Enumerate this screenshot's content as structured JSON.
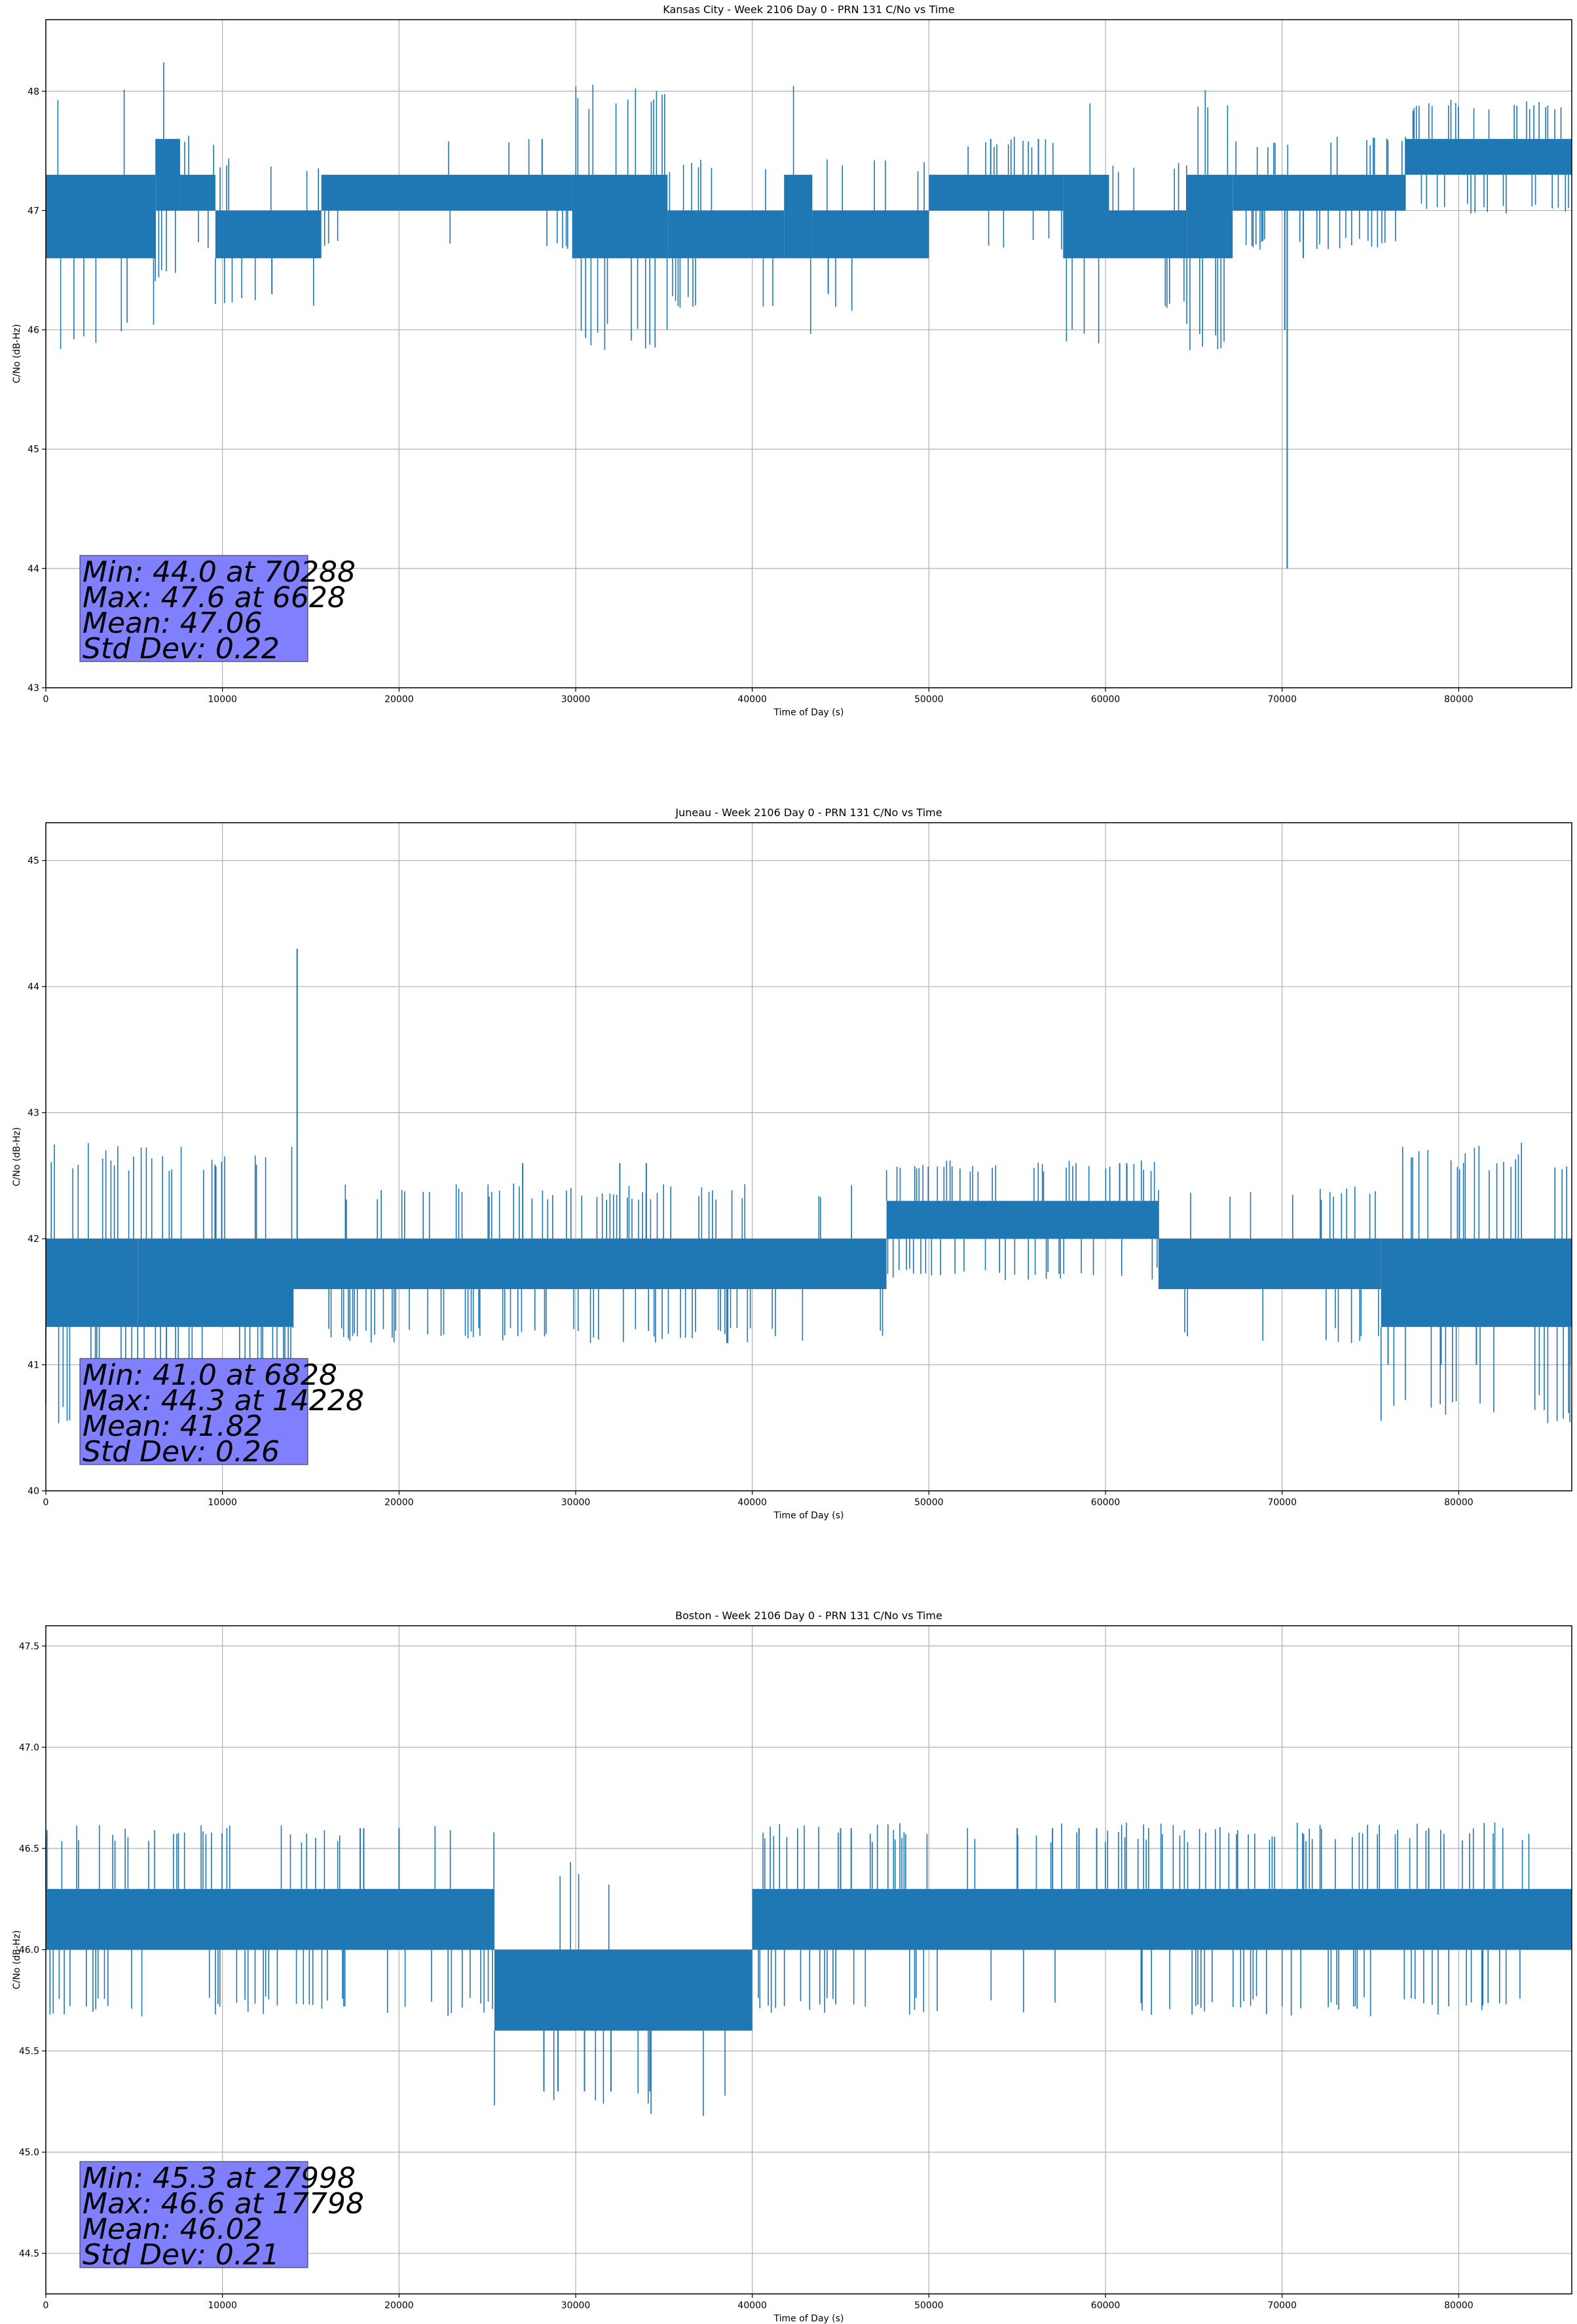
{
  "colors": {
    "series": "#1f77b4",
    "grid": "#b0b0b0",
    "stats_box": "#8080ff",
    "axes": "#000000",
    "background": "#ffffff"
  },
  "chart_data": [
    {
      "type": "line",
      "title": "Kansas City - Week 2106 Day 0 - PRN 131 C/No vs Time",
      "xlabel": "Time of Day (s)",
      "ylabel": "C/No (dB-Hz)",
      "xlim": [
        0,
        86400
      ],
      "ylim": [
        43,
        48.6
      ],
      "xticks": [
        0,
        10000,
        20000,
        30000,
        40000,
        50000,
        60000,
        70000,
        80000
      ],
      "xtick_labels": [
        "0",
        "10000",
        "20000",
        "30000",
        "40000",
        "50000",
        "60000",
        "70000",
        "80000"
      ],
      "yticks": [
        43,
        44,
        45,
        46,
        47,
        48
      ],
      "ytick_labels": [
        "43",
        "44",
        "45",
        "46",
        "47",
        "48"
      ],
      "grid": true,
      "legend": "none",
      "stats_lines": [
        "Min: 44.0 at 70288",
        "Max: 47.6 at 6628",
        "Mean: 47.06",
        "Std Dev: 0.22"
      ],
      "series": [
        {
          "values_note": "Noisy C/No trace; quantized levels 46.6 / 47.0 / 47.3 / 47.6 dB-Hz",
          "segments": [
            {
              "x": [
                0,
                6200
              ],
              "low": 46.6,
              "high": 47.3
            },
            {
              "x": [
                6200,
                7600
              ],
              "low": 47.0,
              "high": 47.6
            },
            {
              "x": [
                7600,
                9600
              ],
              "low": 47.0,
              "high": 47.3
            },
            {
              "x": [
                9600,
                15600
              ],
              "low": 46.6,
              "high": 47.0
            },
            {
              "x": [
                15600,
                29800
              ],
              "low": 47.0,
              "high": 47.3
            },
            {
              "x": [
                29800,
                35200
              ],
              "low": 46.6,
              "high": 47.3
            },
            {
              "x": [
                35200,
                41800
              ],
              "low": 46.6,
              "high": 47.0
            },
            {
              "x": [
                41800,
                43400
              ],
              "low": 46.6,
              "high": 47.3
            },
            {
              "x": [
                43400,
                50000
              ],
              "low": 46.6,
              "high": 47.0
            },
            {
              "x": [
                50000,
                57600
              ],
              "low": 47.0,
              "high": 47.3
            },
            {
              "x": [
                57600,
                60200
              ],
              "low": 46.6,
              "high": 47.3
            },
            {
              "x": [
                60200,
                64600
              ],
              "low": 46.6,
              "high": 47.0
            },
            {
              "x": [
                64600,
                67200
              ],
              "low": 46.6,
              "high": 47.3
            },
            {
              "x": [
                67200,
                77000
              ],
              "low": 47.0,
              "high": 47.3
            },
            {
              "x": [
                77000,
                86400
              ],
              "low": 47.3,
              "high": 47.6
            }
          ],
          "sparse_zones": [
            [
              5600,
              11200
            ],
            [
              28600,
              37800
            ],
            [
              53000,
              57200
            ],
            [
              63200,
              69200
            ],
            [
              72200,
              86400
            ]
          ],
          "spikes": [
            {
              "x": 12800,
              "y": 46.3
            },
            {
              "x": 28100,
              "y": 47.6
            },
            {
              "x": 44300,
              "y": 46.3
            },
            {
              "x": 70288,
              "y": 44.0
            },
            {
              "x": 70150,
              "y": 46.0
            },
            {
              "x": 71200,
              "y": 46.6
            },
            {
              "x": 7400,
              "y": 47.6
            },
            {
              "x": 53500,
              "y": 47.6
            },
            {
              "x": 56200,
              "y": 47.6
            }
          ]
        }
      ]
    },
    {
      "type": "line",
      "title": "Juneau - Week 2106 Day 0 - PRN 131 C/No vs Time",
      "xlabel": "Time of Day (s)",
      "ylabel": "C/No (dB-Hz)",
      "xlim": [
        0,
        86400
      ],
      "ylim": [
        40,
        45.3
      ],
      "xticks": [
        0,
        10000,
        20000,
        30000,
        40000,
        50000,
        60000,
        70000,
        80000
      ],
      "xtick_labels": [
        "0",
        "10000",
        "20000",
        "30000",
        "40000",
        "50000",
        "60000",
        "70000",
        "80000"
      ],
      "yticks": [
        40,
        41,
        42,
        43,
        44,
        45
      ],
      "ytick_labels": [
        "40",
        "41",
        "42",
        "43",
        "44",
        "45"
      ],
      "grid": true,
      "legend": "none",
      "stats_lines": [
        "Min: 41.0 at 6828",
        "Max: 44.3 at 14228",
        "Mean: 41.82",
        "Std Dev: 0.26"
      ],
      "series": [
        {
          "values_note": "Noisy C/No trace; quantized levels 41.3 / 41.6 / 42.0 / 42.3 dB-Hz",
          "segments": [
            {
              "x": [
                0,
                5200
              ],
              "low": 41.3,
              "high": 42.0
            },
            {
              "x": [
                5200,
                14000
              ],
              "low": 41.3,
              "high": 42.0
            },
            {
              "x": [
                14000,
                47600
              ],
              "low": 41.6,
              "high": 42.0
            },
            {
              "x": [
                47600,
                63000
              ],
              "low": 42.0,
              "high": 42.3
            },
            {
              "x": [
                63000,
                70400
              ],
              "low": 41.6,
              "high": 42.0
            },
            {
              "x": [
                70400,
                75600
              ],
              "low": 41.6,
              "high": 42.0
            },
            {
              "x": [
                75600,
                86400
              ],
              "low": 41.3,
              "high": 42.0
            }
          ],
          "sparse_zones": [
            [
              0,
              14000
            ],
            [
              16000,
              40000
            ],
            [
              47600,
              63000
            ],
            [
              72000,
              86400
            ]
          ],
          "spikes": [
            {
              "x": 14228,
              "y": 44.3
            },
            {
              "x": 6828,
              "y": 41.0
            },
            {
              "x": 27000,
              "y": 42.6
            },
            {
              "x": 32500,
              "y": 42.6
            },
            {
              "x": 34000,
              "y": 42.6
            },
            {
              "x": 60800,
              "y": 42.6
            },
            {
              "x": 61200,
              "y": 42.6
            },
            {
              "x": 76000,
              "y": 41.0
            },
            {
              "x": 79000,
              "y": 41.0
            },
            {
              "x": 81000,
              "y": 41.0
            },
            {
              "x": 86300,
              "y": 41.0
            }
          ]
        }
      ]
    },
    {
      "type": "line",
      "title": "Boston - Week 2106 Day 0 - PRN 131 C/No vs Time",
      "xlabel": "Time of Day (s)",
      "ylabel": "C/No (dB-Hz)",
      "xlim": [
        0,
        86400
      ],
      "ylim": [
        44.3,
        47.6
      ],
      "xticks": [
        0,
        10000,
        20000,
        30000,
        40000,
        50000,
        60000,
        70000,
        80000
      ],
      "xtick_labels": [
        "0",
        "10000",
        "20000",
        "30000",
        "40000",
        "50000",
        "60000",
        "70000",
        "80000"
      ],
      "yticks": [
        44.5,
        45.0,
        45.5,
        46.0,
        46.5,
        47.0,
        47.5
      ],
      "ytick_labels": [
        "44.5",
        "45.0",
        "45.5",
        "46.0",
        "46.5",
        "47.0",
        "47.5"
      ],
      "grid": true,
      "legend": "none",
      "stats_lines": [
        "Min: 45.3 at 27998",
        "Max: 46.6 at 17798",
        "Mean: 46.02",
        "Std Dev: 0.21"
      ],
      "series": [
        {
          "values_note": "Noisy C/No trace; quantized levels 45.3 / 45.6 / 46.0 / 46.3 dB-Hz",
          "segments": [
            {
              "x": [
                0,
                25400
              ],
              "low": 46.0,
              "high": 46.3
            },
            {
              "x": [
                25400,
                40000
              ],
              "low": 45.6,
              "high": 46.0
            },
            {
              "x": [
                40000,
                86400
              ],
              "low": 46.0,
              "high": 46.3
            }
          ],
          "sparse_zones": [
            [
              0,
              4000
            ],
            [
              8600,
              17000
            ],
            [
              22800,
              25400
            ],
            [
              40000,
              50000
            ],
            [
              60000,
              84000
            ]
          ],
          "spikes": [
            {
              "x": 17798,
              "y": 46.6
            },
            {
              "x": 18000,
              "y": 46.6
            },
            {
              "x": 20000,
              "y": 46.6
            },
            {
              "x": 28200,
              "y": 45.3
            },
            {
              "x": 29000,
              "y": 45.3
            },
            {
              "x": 30500,
              "y": 45.3
            },
            {
              "x": 32000,
              "y": 45.3
            },
            {
              "x": 34200,
              "y": 45.3
            },
            {
              "x": 45000,
              "y": 46.6
            },
            {
              "x": 45600,
              "y": 46.6
            },
            {
              "x": 55000,
              "y": 46.6
            },
            {
              "x": 57000,
              "y": 46.6
            },
            {
              "x": 58500,
              "y": 46.6
            },
            {
              "x": 59500,
              "y": 46.6
            },
            {
              "x": 78300,
              "y": 46.6
            }
          ]
        }
      ]
    }
  ]
}
